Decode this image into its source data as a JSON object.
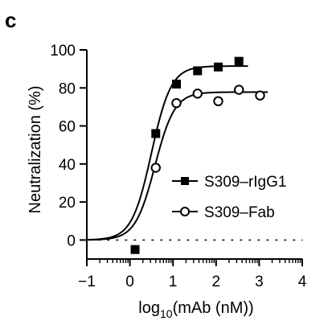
{
  "chart_data": {
    "type": "scatter",
    "panel_label": "c",
    "title": "",
    "xlabel": {
      "prefix": "log",
      "subscript": "10",
      "suffix": "(mAb (nM))"
    },
    "ylabel": "Neutralization (%)",
    "xlim": [
      -1,
      4
    ],
    "ylim": [
      -10,
      100
    ],
    "x_ticks": [
      -1,
      0,
      1,
      2,
      3,
      4
    ],
    "x_tick_labels": [
      "−1",
      "0",
      "1",
      "2",
      "3",
      "4"
    ],
    "y_ticks": [
      0,
      20,
      40,
      60,
      80,
      100
    ],
    "y_tick_labels": [
      "0",
      "20",
      "40",
      "60",
      "80",
      "100"
    ],
    "x_scale": "log10 values with minor log ticks",
    "reference_line": {
      "y": 0,
      "style": "dotted"
    },
    "legend_position": "center-right",
    "series": [
      {
        "name": "S309–rIgG1",
        "marker": "filled-square",
        "color": "#000000",
        "x": [
          0.12,
          0.6,
          1.08,
          1.57,
          2.05,
          2.53
        ],
        "y": [
          -5,
          56,
          82,
          89,
          91,
          94
        ],
        "fit": {
          "bottom": 0,
          "top": 91.5,
          "logEC50": 0.5,
          "hill": 1.9
        }
      },
      {
        "name": "S309–Fab",
        "marker": "open-circle",
        "color": "#000000",
        "x": [
          0.6,
          1.08,
          1.57,
          2.05,
          2.53,
          3.02
        ],
        "y": [
          38,
          72,
          77,
          73,
          79,
          76
        ],
        "fit": {
          "bottom": 0,
          "top": 77.8,
          "logEC50": 0.58,
          "hill": 1.9
        }
      }
    ]
  }
}
